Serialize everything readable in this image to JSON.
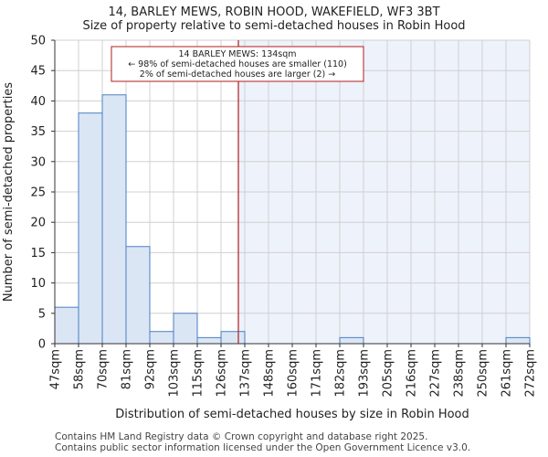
{
  "chart_data": {
    "type": "bar",
    "title": "14, BARLEY MEWS, ROBIN HOOD, WAKEFIELD, WF3 3BT",
    "subtitle": "Size of property relative to semi-detached houses in Robin Hood",
    "xlabel": "Distribution of semi-detached houses by size in Robin Hood",
    "ylabel": "Number of semi-detached properties",
    "ylim": [
      0,
      50
    ],
    "yticks": [
      0,
      5,
      10,
      15,
      20,
      25,
      30,
      35,
      40,
      45,
      50
    ],
    "bin_edges": [
      "47sqm",
      "58sqm",
      "70sqm",
      "81sqm",
      "92sqm",
      "103sqm",
      "115sqm",
      "126sqm",
      "137sqm",
      "148sqm",
      "160sqm",
      "171sqm",
      "182sqm",
      "193sqm",
      "205sqm",
      "216sqm",
      "227sqm",
      "238sqm",
      "250sqm",
      "261sqm",
      "272sqm"
    ],
    "values": [
      6,
      38,
      41,
      16,
      2,
      5,
      1,
      2,
      0,
      0,
      0,
      0,
      1,
      0,
      0,
      0,
      0,
      0,
      0,
      1
    ],
    "marker": {
      "value_bin_position": 7.73,
      "label_line1": "14 BARLEY MEWS: 134sqm",
      "label_line2": "← 98% of semi-detached houses are smaller (110)",
      "label_line3": "2% of semi-detached houses are larger (2) →"
    },
    "colors": {
      "bar_fill": "#dbe6f5",
      "bar_stroke": "#4a7fc1",
      "highlight_bg": "#eef2fb",
      "marker_line": "#b01c1c",
      "grid": "#d0d0d0"
    },
    "grid": true
  },
  "footer": {
    "line1": "Contains HM Land Registry data © Crown copyright and database right 2025.",
    "line2": "Contains public sector information licensed under the Open Government Licence v3.0."
  }
}
